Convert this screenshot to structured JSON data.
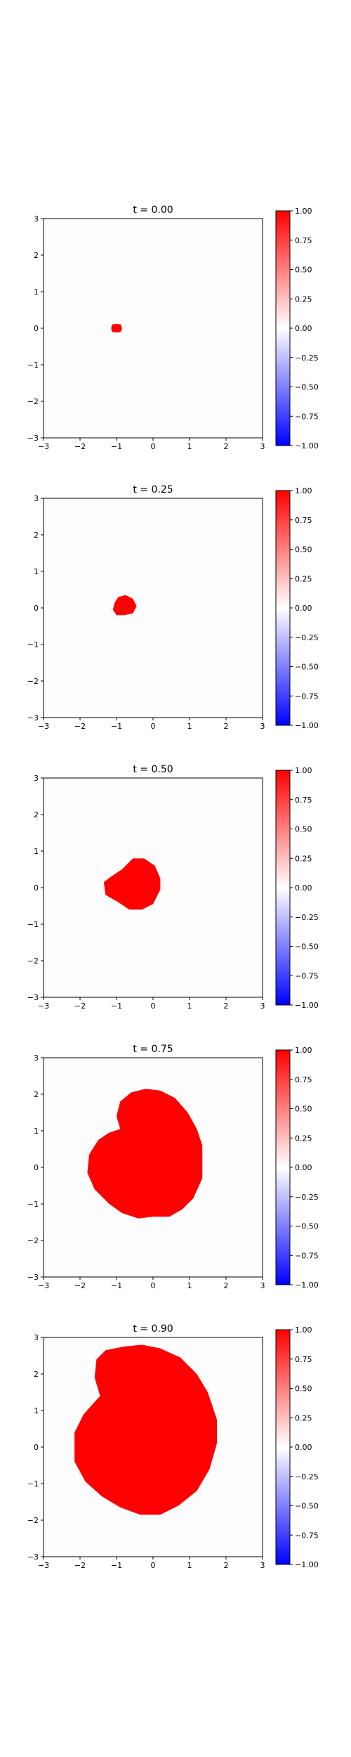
{
  "figure": {
    "background": "#ffffff"
  },
  "chart_data": [
    {
      "type": "heatmap",
      "title": "t = 0.00",
      "xlim": [
        -3,
        3
      ],
      "ylim": [
        -3,
        3
      ],
      "xticks": [
        -3,
        -2,
        -1,
        0,
        1,
        2,
        3
      ],
      "yticks": [
        -3,
        -2,
        -1,
        0,
        1,
        2,
        3
      ],
      "grid": false,
      "fill_color": "#ff0000",
      "fill_value": 1.0,
      "background_value": 0.0,
      "region": [
        [
          -1.12,
          0.1
        ],
        [
          -1.0,
          0.12
        ],
        [
          -0.88,
          0.1
        ],
        [
          -0.85,
          0.0
        ],
        [
          -0.88,
          -0.1
        ],
        [
          -1.0,
          -0.12
        ],
        [
          -1.12,
          -0.1
        ],
        [
          -1.15,
          0.0
        ]
      ],
      "colorbar": {
        "vmin": -1.0,
        "vmax": 1.0,
        "colors": [
          "#0000ff",
          "#ffffff",
          "#ff0000"
        ],
        "ticks": [
          "1.00",
          "0.75",
          "0.50",
          "0.25",
          "0.00",
          "−0.25",
          "−0.50",
          "−0.75",
          "−1.00"
        ]
      }
    },
    {
      "type": "heatmap",
      "title": "t = 0.25",
      "xlim": [
        -3,
        3
      ],
      "ylim": [
        -3,
        3
      ],
      "xticks": [
        -3,
        -2,
        -1,
        0,
        1,
        2,
        3
      ],
      "yticks": [
        -3,
        -2,
        -1,
        0,
        1,
        2,
        3
      ],
      "grid": false,
      "fill_color": "#ff0000",
      "fill_value": 1.0,
      "background_value": 0.0,
      "region": [
        [
          -0.95,
          0.3
        ],
        [
          -0.75,
          0.35
        ],
        [
          -0.55,
          0.25
        ],
        [
          -0.45,
          0.05
        ],
        [
          -0.55,
          -0.15
        ],
        [
          -0.8,
          -0.2
        ],
        [
          -1.0,
          -0.2
        ],
        [
          -1.1,
          -0.05
        ],
        [
          -1.05,
          0.15
        ]
      ],
      "colorbar": {
        "vmin": -1.0,
        "vmax": 1.0,
        "colors": [
          "#0000ff",
          "#ffffff",
          "#ff0000"
        ],
        "ticks": [
          "1.00",
          "0.75",
          "0.50",
          "0.25",
          "0.00",
          "−0.25",
          "−0.50",
          "−0.75",
          "−1.00"
        ]
      }
    },
    {
      "type": "heatmap",
      "title": "t = 0.50",
      "xlim": [
        -3,
        3
      ],
      "ylim": [
        -3,
        3
      ],
      "xticks": [
        -3,
        -2,
        -1,
        0,
        1,
        2,
        3
      ],
      "yticks": [
        -3,
        -2,
        -1,
        0,
        1,
        2,
        3
      ],
      "grid": false,
      "fill_color": "#ff0000",
      "fill_value": 1.0,
      "background_value": 0.0,
      "region": [
        [
          -0.85,
          0.5
        ],
        [
          -0.55,
          0.8
        ],
        [
          -0.25,
          0.8
        ],
        [
          0.05,
          0.6
        ],
        [
          0.2,
          0.25
        ],
        [
          0.2,
          -0.05
        ],
        [
          0.0,
          -0.45
        ],
        [
          -0.3,
          -0.6
        ],
        [
          -0.65,
          -0.6
        ],
        [
          -0.95,
          -0.4
        ],
        [
          -1.3,
          -0.2
        ],
        [
          -1.35,
          0.15
        ],
        [
          -1.15,
          0.3
        ]
      ],
      "colorbar": {
        "vmin": -1.0,
        "vmax": 1.0,
        "colors": [
          "#0000ff",
          "#ffffff",
          "#ff0000"
        ],
        "ticks": [
          "1.00",
          "0.75",
          "0.50",
          "0.25",
          "0.00",
          "−0.25",
          "−0.50",
          "−0.75",
          "−1.00"
        ]
      }
    },
    {
      "type": "heatmap",
      "title": "t = 0.75",
      "xlim": [
        -3,
        3
      ],
      "ylim": [
        -3,
        3
      ],
      "xticks": [
        -3,
        -2,
        -1,
        0,
        1,
        2,
        3
      ],
      "yticks": [
        -3,
        -2,
        -1,
        0,
        1,
        2,
        3
      ],
      "grid": false,
      "fill_color": "#ff0000",
      "fill_value": 1.0,
      "background_value": 0.0,
      "region": [
        [
          -0.9,
          1.05
        ],
        [
          -1.0,
          1.4
        ],
        [
          -0.9,
          1.8
        ],
        [
          -0.6,
          2.05
        ],
        [
          -0.2,
          2.15
        ],
        [
          0.2,
          2.1
        ],
        [
          0.6,
          1.9
        ],
        [
          0.95,
          1.5
        ],
        [
          1.2,
          1.05
        ],
        [
          1.35,
          0.6
        ],
        [
          1.35,
          -0.3
        ],
        [
          1.1,
          -0.85
        ],
        [
          0.8,
          -1.15
        ],
        [
          0.45,
          -1.35
        ],
        [
          0.0,
          -1.35
        ],
        [
          -0.4,
          -1.4
        ],
        [
          -0.85,
          -1.25
        ],
        [
          -1.2,
          -1.0
        ],
        [
          -1.6,
          -0.6
        ],
        [
          -1.8,
          -0.15
        ],
        [
          -1.75,
          0.35
        ],
        [
          -1.5,
          0.75
        ],
        [
          -1.2,
          0.95
        ]
      ],
      "colorbar": {
        "vmin": -1.0,
        "vmax": 1.0,
        "colors": [
          "#0000ff",
          "#ffffff",
          "#ff0000"
        ],
        "ticks": [
          "1.00",
          "0.75",
          "0.50",
          "0.25",
          "0.00",
          "−0.25",
          "−0.50",
          "−0.75",
          "−1.00"
        ]
      }
    },
    {
      "type": "heatmap",
      "title": "t = 0.90",
      "xlim": [
        -3,
        3
      ],
      "ylim": [
        -3,
        3
      ],
      "xticks": [
        -3,
        -2,
        -1,
        0,
        1,
        2,
        3
      ],
      "yticks": [
        -3,
        -2,
        -1,
        0,
        1,
        2,
        3
      ],
      "grid": false,
      "fill_color": "#ff0000",
      "fill_value": 1.0,
      "background_value": 0.0,
      "region": [
        [
          -1.45,
          1.4
        ],
        [
          -1.6,
          1.9
        ],
        [
          -1.55,
          2.4
        ],
        [
          -1.3,
          2.65
        ],
        [
          -0.8,
          2.75
        ],
        [
          -0.3,
          2.8
        ],
        [
          0.2,
          2.7
        ],
        [
          0.75,
          2.45
        ],
        [
          1.2,
          2.0
        ],
        [
          1.5,
          1.5
        ],
        [
          1.75,
          0.75
        ],
        [
          1.75,
          0.1
        ],
        [
          1.55,
          -0.6
        ],
        [
          1.2,
          -1.2
        ],
        [
          0.7,
          -1.6
        ],
        [
          0.2,
          -1.85
        ],
        [
          -0.35,
          -1.85
        ],
        [
          -0.9,
          -1.65
        ],
        [
          -1.4,
          -1.35
        ],
        [
          -1.85,
          -0.95
        ],
        [
          -2.15,
          -0.4
        ],
        [
          -2.15,
          0.4
        ],
        [
          -1.9,
          0.9
        ]
      ],
      "colorbar": {
        "vmin": -1.0,
        "vmax": 1.0,
        "colors": [
          "#0000ff",
          "#ffffff",
          "#ff0000"
        ],
        "ticks": [
          "1.00",
          "0.75",
          "0.50",
          "0.25",
          "0.00",
          "−0.25",
          "−0.50",
          "−0.75",
          "−1.00"
        ]
      }
    }
  ]
}
